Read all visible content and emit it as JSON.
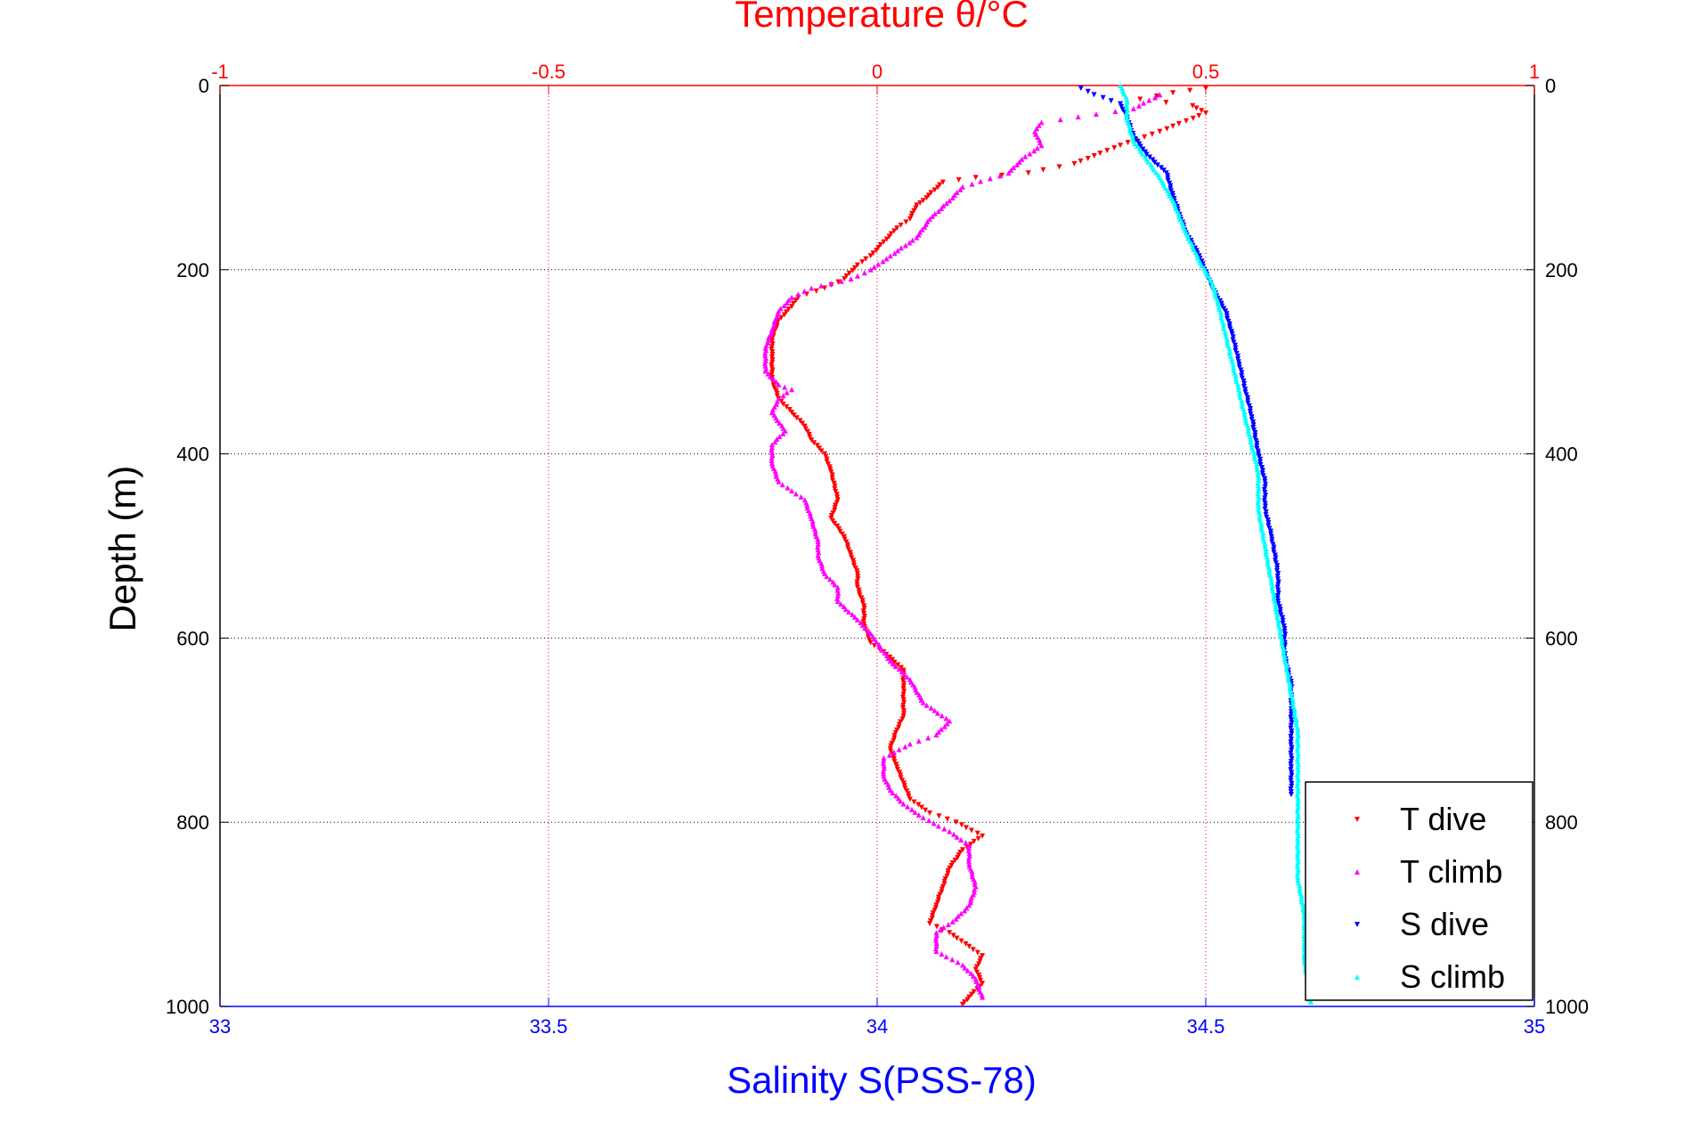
{
  "chart_data": {
    "type": "scatter",
    "title": "Temperature θ/°C",
    "xlabel": "Salinity S(PSS-78)",
    "ylabel": "Depth (m)",
    "ylim": [
      0,
      1000
    ],
    "y_reversed": true,
    "y_ticks": [
      0,
      200,
      400,
      600,
      800,
      1000
    ],
    "x_bottom": {
      "label": "Salinity S(PSS-78)",
      "lim": [
        33,
        35
      ],
      "ticks": [
        "33",
        "33.5",
        "34",
        "34.5",
        "35"
      ],
      "color": "#0000ff"
    },
    "x_top": {
      "label": "Temperature θ/°C",
      "lim": [
        -1,
        1
      ],
      "ticks": [
        "-1",
        "-0.5",
        "0",
        "0.5",
        "1"
      ],
      "color": "#ff0000"
    },
    "y_tick_labels": [
      "0",
      "200",
      "400",
      "600",
      "800",
      "1000"
    ],
    "grid": true,
    "legend_position": "bottom-right",
    "series": [
      {
        "name": "T dive",
        "axis": "top",
        "color": "#ff0000",
        "marker": "triangle-down",
        "points": [
          [
            0.5,
            3
          ],
          [
            0.45,
            8
          ],
          [
            0.4,
            15
          ],
          [
            0.48,
            22
          ],
          [
            0.5,
            30
          ],
          [
            0.43,
            50
          ],
          [
            0.37,
            65
          ],
          [
            0.3,
            85
          ],
          [
            0.23,
            95
          ],
          [
            0.15,
            100
          ],
          [
            0.1,
            105
          ],
          [
            0.07,
            125
          ],
          [
            0.06,
            130
          ],
          [
            0.05,
            145
          ],
          [
            0.03,
            155
          ],
          [
            0.01,
            170
          ],
          [
            -0.01,
            185
          ],
          [
            -0.03,
            195
          ],
          [
            -0.05,
            210
          ],
          [
            -0.08,
            220
          ],
          [
            -0.12,
            230
          ],
          [
            -0.13,
            240
          ],
          [
            -0.15,
            255
          ],
          [
            -0.16,
            275
          ],
          [
            -0.16,
            295
          ],
          [
            -0.16,
            320
          ],
          [
            -0.15,
            340
          ],
          [
            -0.13,
            355
          ],
          [
            -0.11,
            370
          ],
          [
            -0.1,
            385
          ],
          [
            -0.08,
            400
          ],
          [
            -0.07,
            420
          ],
          [
            -0.06,
            450
          ],
          [
            -0.07,
            470
          ],
          [
            -0.05,
            490
          ],
          [
            -0.04,
            510
          ],
          [
            -0.03,
            530
          ],
          [
            -0.03,
            545
          ],
          [
            -0.02,
            565
          ],
          [
            -0.02,
            585
          ],
          [
            -0.01,
            605
          ],
          [
            0.01,
            615
          ],
          [
            0.04,
            635
          ],
          [
            0.04,
            655
          ],
          [
            0.04,
            685
          ],
          [
            0.03,
            700
          ],
          [
            0.02,
            720
          ],
          [
            0.03,
            740
          ],
          [
            0.05,
            775
          ],
          [
            0.08,
            790
          ],
          [
            0.12,
            800
          ],
          [
            0.16,
            815
          ],
          [
            0.13,
            830
          ],
          [
            0.11,
            850
          ],
          [
            0.1,
            870
          ],
          [
            0.09,
            890
          ],
          [
            0.08,
            910
          ],
          [
            0.11,
            920
          ],
          [
            0.14,
            935
          ],
          [
            0.16,
            945
          ],
          [
            0.15,
            960
          ],
          [
            0.16,
            975
          ],
          [
            0.14,
            990
          ],
          [
            0.13,
            998
          ]
        ]
      },
      {
        "name": "T climb",
        "axis": "top",
        "color": "#ff00ff",
        "marker": "triangle-up",
        "points": [
          [
            0.43,
            10
          ],
          [
            0.39,
            25
          ],
          [
            0.25,
            40
          ],
          [
            0.24,
            50
          ],
          [
            0.25,
            65
          ],
          [
            0.22,
            80
          ],
          [
            0.2,
            95
          ],
          [
            0.13,
            110
          ],
          [
            0.11,
            125
          ],
          [
            0.08,
            145
          ],
          [
            0.06,
            165
          ],
          [
            0.02,
            185
          ],
          [
            -0.01,
            200
          ],
          [
            -0.04,
            210
          ],
          [
            -0.07,
            215
          ],
          [
            -0.1,
            220
          ],
          [
            -0.13,
            230
          ],
          [
            -0.15,
            245
          ],
          [
            -0.16,
            265
          ],
          [
            -0.17,
            285
          ],
          [
            -0.17,
            310
          ],
          [
            -0.15,
            325
          ],
          [
            -0.13,
            330
          ],
          [
            -0.15,
            340
          ],
          [
            -0.16,
            355
          ],
          [
            -0.14,
            375
          ],
          [
            -0.16,
            390
          ],
          [
            -0.16,
            410
          ],
          [
            -0.15,
            430
          ],
          [
            -0.13,
            440
          ],
          [
            -0.11,
            450
          ],
          [
            -0.1,
            470
          ],
          [
            -0.09,
            495
          ],
          [
            -0.09,
            510
          ],
          [
            -0.08,
            530
          ],
          [
            -0.06,
            545
          ],
          [
            -0.06,
            560
          ],
          [
            -0.03,
            580
          ],
          [
            -0.01,
            595
          ],
          [
            0.02,
            625
          ],
          [
            0.05,
            645
          ],
          [
            0.07,
            670
          ],
          [
            0.11,
            690
          ],
          [
            0.09,
            705
          ],
          [
            0.05,
            715
          ],
          [
            0.01,
            730
          ],
          [
            0.01,
            750
          ],
          [
            0.02,
            765
          ],
          [
            0.04,
            780
          ],
          [
            0.07,
            795
          ],
          [
            0.11,
            810
          ],
          [
            0.14,
            825
          ],
          [
            0.14,
            845
          ],
          [
            0.15,
            870
          ],
          [
            0.14,
            890
          ],
          [
            0.12,
            905
          ],
          [
            0.09,
            920
          ],
          [
            0.09,
            940
          ],
          [
            0.13,
            955
          ],
          [
            0.15,
            970
          ],
          [
            0.16,
            990
          ]
        ]
      },
      {
        "name": "S dive",
        "axis": "bottom",
        "color": "#0000ff",
        "marker": "triangle-down",
        "points": [
          [
            34.31,
            3
          ],
          [
            34.33,
            10
          ],
          [
            34.37,
            20
          ],
          [
            34.38,
            35
          ],
          [
            34.39,
            55
          ],
          [
            34.41,
            75
          ],
          [
            34.44,
            95
          ],
          [
            34.45,
            120
          ],
          [
            34.46,
            140
          ],
          [
            34.47,
            160
          ],
          [
            34.49,
            185
          ],
          [
            34.51,
            220
          ],
          [
            34.53,
            245
          ],
          [
            34.54,
            270
          ],
          [
            34.55,
            300
          ],
          [
            34.56,
            330
          ],
          [
            34.57,
            360
          ],
          [
            34.58,
            400
          ],
          [
            34.59,
            430
          ],
          [
            34.59,
            460
          ],
          [
            34.6,
            490
          ],
          [
            34.61,
            530
          ],
          [
            34.61,
            560
          ],
          [
            34.62,
            590
          ],
          [
            34.62,
            620
          ],
          [
            34.63,
            650
          ],
          [
            34.63,
            680
          ],
          [
            34.63,
            710
          ],
          [
            34.63,
            740
          ],
          [
            34.63,
            770
          ]
        ]
      },
      {
        "name": "S climb",
        "axis": "bottom",
        "color": "#00ffff",
        "marker": "triangle-up",
        "points": [
          [
            34.37,
            0
          ],
          [
            34.38,
            15
          ],
          [
            34.38,
            35
          ],
          [
            34.39,
            60
          ],
          [
            34.41,
            80
          ],
          [
            34.43,
            100
          ],
          [
            34.45,
            125
          ],
          [
            34.47,
            160
          ],
          [
            34.49,
            190
          ],
          [
            34.51,
            215
          ],
          [
            34.52,
            240
          ],
          [
            34.53,
            270
          ],
          [
            34.54,
            300
          ],
          [
            34.55,
            330
          ],
          [
            34.56,
            360
          ],
          [
            34.57,
            390
          ],
          [
            34.58,
            420
          ],
          [
            34.58,
            460
          ],
          [
            34.59,
            500
          ],
          [
            34.6,
            540
          ],
          [
            34.61,
            580
          ],
          [
            34.62,
            620
          ],
          [
            34.63,
            660
          ],
          [
            34.64,
            700
          ],
          [
            34.64,
            740
          ],
          [
            34.64,
            780
          ],
          [
            34.64,
            820
          ],
          [
            34.64,
            860
          ],
          [
            34.65,
            900
          ],
          [
            34.65,
            950
          ],
          [
            34.66,
            995
          ]
        ]
      }
    ]
  }
}
